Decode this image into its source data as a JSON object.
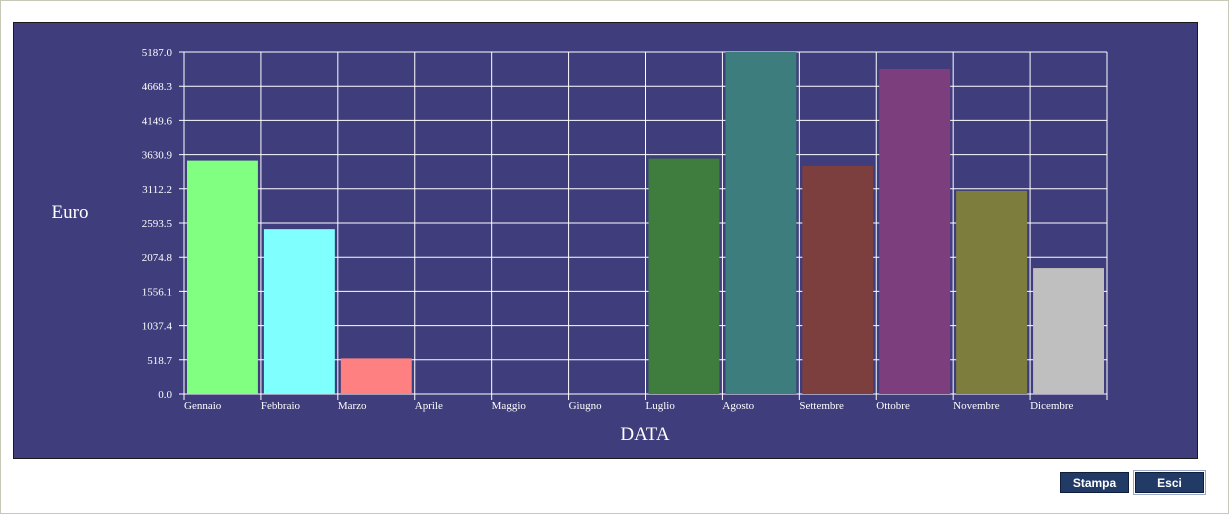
{
  "buttons": {
    "print_label": "Stampa",
    "exit_label": "Esci"
  },
  "colors": {
    "panel_bg": "#3f3d7c",
    "grid": "#ffffff",
    "text": "#ffffff",
    "button_bg": "#223a66"
  },
  "chart_data": {
    "type": "bar",
    "title": "",
    "xlabel": "DATA",
    "ylabel": "Euro",
    "ylim": [
      0,
      5187.0
    ],
    "yticks": [
      "0.0",
      "518.7",
      "1037.4",
      "1556.1",
      "2074.8",
      "2593.5",
      "3112.2",
      "3630.9",
      "4149.6",
      "4668.3",
      "5187.0"
    ],
    "grid": true,
    "categories": [
      "Gennaio",
      "Febbraio",
      "Marzo",
      "Aprile",
      "Maggio",
      "Giugno",
      "Luglio",
      "Agosto",
      "Settembre",
      "Ottobre",
      "Novembre",
      "Dicembre"
    ],
    "values": [
      3540,
      2500,
      540,
      0,
      0,
      0,
      3570,
      5187,
      3460,
      4930,
      3080,
      1910
    ],
    "bar_colors": [
      "#80ff80",
      "#80ffff",
      "#ff8080",
      "#808080",
      "#808080",
      "#808080",
      "#3e7d3e",
      "#3e7d7d",
      "#7d3e3e",
      "#7d3e7d",
      "#7d7d3e",
      "#bfbfbf"
    ]
  }
}
